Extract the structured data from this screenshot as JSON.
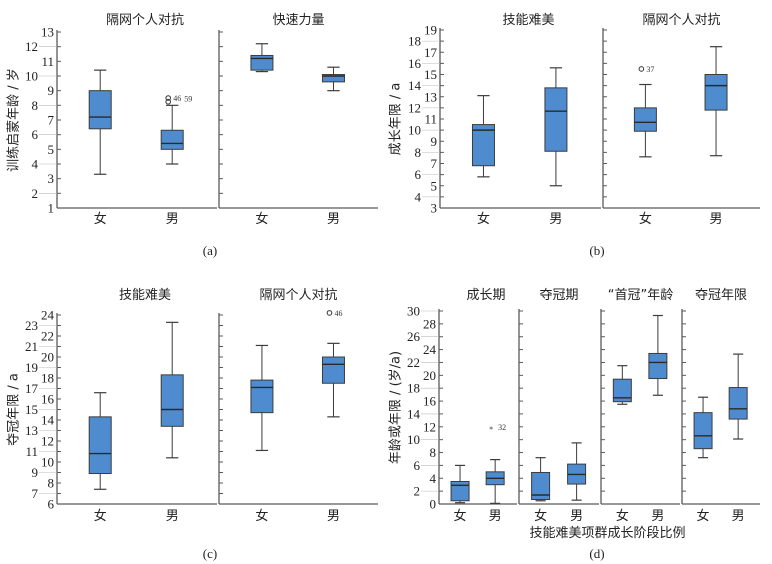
{
  "colors": {
    "box_fill": "#4e8ccf",
    "box_stroke": "#3c3c3c",
    "axis": "#5a5a5a"
  },
  "chart_data": [
    {
      "type": "boxplot",
      "caption": "(a)",
      "ylabel": "训练启蒙年龄 / 岁",
      "ylim": [
        1,
        13
      ],
      "ytick_step": 1,
      "subplots": [
        {
          "title": "隔网个人对抗",
          "groups": [
            {
              "label": "女",
              "whisker_low": 3.3,
              "q1": 6.4,
              "median": 7.2,
              "q3": 9.0,
              "whisker_high": 10.4,
              "outliers": []
            },
            {
              "label": "男",
              "whisker_low": 4.0,
              "q1": 5.0,
              "median": 5.4,
              "q3": 6.3,
              "whisker_high": 8.0,
              "outliers": [
                {
                  "value": 8.5,
                  "marker": "circle",
                  "label": "46"
                },
                {
                  "value": 8.45,
                  "marker": "circle",
                  "label": "59"
                }
              ]
            }
          ]
        },
        {
          "title": "快速力量",
          "groups": [
            {
              "label": "女",
              "whisker_low": 10.3,
              "q1": 10.4,
              "median": 11.2,
              "q3": 11.4,
              "whisker_high": 12.2,
              "outliers": []
            },
            {
              "label": "男",
              "whisker_low": 9.0,
              "q1": 9.6,
              "median": 10.0,
              "q3": 10.1,
              "whisker_high": 10.6,
              "outliers": []
            }
          ]
        }
      ]
    },
    {
      "type": "boxplot",
      "caption": "(b)",
      "ylabel": "成长年限 / a",
      "ylim": [
        3,
        19
      ],
      "ytick_step": 1,
      "subplots": [
        {
          "title": "技能难美",
          "groups": [
            {
              "label": "女",
              "whisker_low": 5.8,
              "q1": 6.8,
              "median": 10.0,
              "q3": 10.5,
              "whisker_high": 13.1,
              "outliers": []
            },
            {
              "label": "男",
              "whisker_low": 5.0,
              "q1": 8.1,
              "median": 11.7,
              "q3": 13.8,
              "whisker_high": 15.6,
              "outliers": []
            }
          ]
        },
        {
          "title": "隔网个人对抗",
          "groups": [
            {
              "label": "女",
              "whisker_low": 7.6,
              "q1": 9.9,
              "median": 10.7,
              "q3": 12.0,
              "whisker_high": 14.1,
              "outliers": [
                {
                  "value": 15.5,
                  "marker": "circle",
                  "label": "37"
                }
              ]
            },
            {
              "label": "男",
              "whisker_low": 7.7,
              "q1": 11.8,
              "median": 14.0,
              "q3": 15.0,
              "whisker_high": 17.5,
              "outliers": []
            }
          ]
        }
      ]
    },
    {
      "type": "boxplot",
      "caption": "(c)",
      "ylabel": "夺冠年限 / a",
      "ylim": [
        6,
        24
      ],
      "ytick_step": 1,
      "subplots": [
        {
          "title": "技能难美",
          "groups": [
            {
              "label": "女",
              "whisker_low": 7.4,
              "q1": 8.9,
              "median": 10.8,
              "q3": 14.3,
              "whisker_high": 16.6,
              "outliers": []
            },
            {
              "label": "男",
              "whisker_low": 10.4,
              "q1": 13.4,
              "median": 15.0,
              "q3": 18.3,
              "whisker_high": 23.3,
              "outliers": []
            }
          ]
        },
        {
          "title": "隔网个人对抗",
          "groups": [
            {
              "label": "女",
              "whisker_low": 11.1,
              "q1": 14.7,
              "median": 17.1,
              "q3": 17.8,
              "whisker_high": 21.1,
              "outliers": []
            },
            {
              "label": "男",
              "whisker_low": 14.3,
              "q1": 17.5,
              "median": 19.3,
              "q3": 20.0,
              "whisker_high": 21.3,
              "outliers": [
                {
                  "value": 24.2,
                  "marker": "circle",
                  "label": "46"
                }
              ]
            }
          ]
        }
      ]
    },
    {
      "type": "boxplot",
      "caption": "(d)",
      "ylabel": "年龄或年限 / (岁/a)",
      "xlabel": "技能难美项群成长阶段比例",
      "ylim": [
        0,
        30
      ],
      "ytick_step": 2,
      "subplots": [
        {
          "title": "成长期",
          "groups": [
            {
              "label": "女",
              "whisker_low": 0.2,
              "q1": 0.5,
              "median": 2.9,
              "q3": 3.5,
              "whisker_high": 6.0,
              "outliers": []
            },
            {
              "label": "男",
              "whisker_low": 0.1,
              "q1": 3.0,
              "median": 4.0,
              "q3": 5.0,
              "whisker_high": 6.9,
              "outliers": [
                {
                  "value": 11.8,
                  "marker": "star",
                  "label": "32"
                }
              ]
            }
          ]
        },
        {
          "title": "夺冠期",
          "groups": [
            {
              "label": "女",
              "whisker_low": 0.5,
              "q1": 0.7,
              "median": 1.4,
              "q3": 4.9,
              "whisker_high": 7.2,
              "outliers": []
            },
            {
              "label": "男",
              "whisker_low": 0.6,
              "q1": 3.1,
              "median": 4.6,
              "q3": 6.2,
              "whisker_high": 9.5,
              "outliers": []
            }
          ]
        },
        {
          "title": "“首冠”年龄",
          "groups": [
            {
              "label": "女",
              "whisker_low": 15.5,
              "q1": 15.9,
              "median": 16.5,
              "q3": 19.4,
              "whisker_high": 21.5,
              "outliers": []
            },
            {
              "label": "男",
              "whisker_low": 16.9,
              "q1": 19.5,
              "median": 22.0,
              "q3": 23.4,
              "whisker_high": 29.3,
              "outliers": []
            }
          ]
        },
        {
          "title": "夺冠年限",
          "groups": [
            {
              "label": "女",
              "whisker_low": 7.2,
              "q1": 8.6,
              "median": 10.6,
              "q3": 14.2,
              "whisker_high": 16.6,
              "outliers": []
            },
            {
              "label": "男",
              "whisker_low": 10.1,
              "q1": 13.2,
              "median": 14.8,
              "q3": 18.1,
              "whisker_high": 23.3,
              "outliers": []
            }
          ]
        }
      ]
    }
  ]
}
